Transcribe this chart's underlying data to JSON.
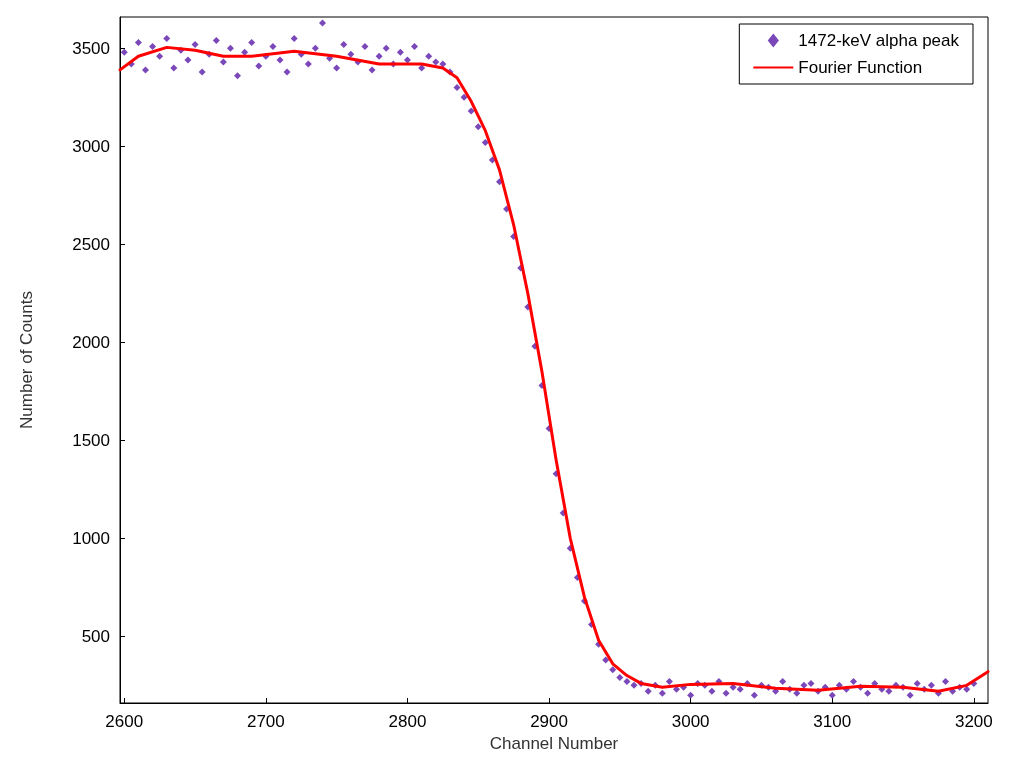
{
  "chart_data": {
    "type": "scatter",
    "xlabel": "Channel Number",
    "ylabel": "Number of Counts",
    "xlim": [
      2597,
      3210
    ],
    "ylim": [
      160,
      3660
    ],
    "xticks": [
      2600,
      2700,
      2800,
      2900,
      3000,
      3100,
      3200
    ],
    "yticks": [
      500,
      1000,
      1500,
      2000,
      2500,
      3000,
      3500
    ],
    "grid": false,
    "legend": "top right",
    "series": [
      {
        "name": "1472-keV alpha peak",
        "marker": "diamond",
        "color": "#5a1aa8",
        "x": [
          2600,
          2605,
          2610,
          2615,
          2620,
          2625,
          2630,
          2635,
          2640,
          2645,
          2650,
          2655,
          2660,
          2665,
          2670,
          2675,
          2680,
          2685,
          2690,
          2695,
          2700,
          2705,
          2710,
          2715,
          2720,
          2725,
          2730,
          2735,
          2740,
          2745,
          2750,
          2755,
          2760,
          2765,
          2770,
          2775,
          2780,
          2785,
          2790,
          2795,
          2800,
          2805,
          2810,
          2815,
          2820,
          2825,
          2830,
          2835,
          2840,
          2845,
          2850,
          2855,
          2860,
          2865,
          2870,
          2875,
          2880,
          2885,
          2890,
          2895,
          2900,
          2905,
          2910,
          2915,
          2920,
          2925,
          2930,
          2935,
          2940,
          2945,
          2950,
          2955,
          2960,
          2965,
          2970,
          2975,
          2980,
          2985,
          2990,
          2995,
          3000,
          3005,
          3010,
          3015,
          3020,
          3025,
          3030,
          3035,
          3040,
          3045,
          3050,
          3055,
          3060,
          3065,
          3070,
          3075,
          3080,
          3085,
          3090,
          3095,
          3100,
          3105,
          3110,
          3115,
          3120,
          3125,
          3130,
          3135,
          3140,
          3145,
          3150,
          3155,
          3160,
          3165,
          3170,
          3175,
          3180,
          3185,
          3190,
          3195,
          3200
        ],
        "values": [
          3480,
          3420,
          3530,
          3390,
          3510,
          3460,
          3550,
          3400,
          3490,
          3440,
          3520,
          3380,
          3470,
          3540,
          3430,
          3500,
          3360,
          3480,
          3530,
          3410,
          3460,
          3510,
          3440,
          3380,
          3550,
          3470,
          3420,
          3500,
          3630,
          3450,
          3400,
          3520,
          3470,
          3430,
          3510,
          3390,
          3460,
          3500,
          3420,
          3480,
          3440,
          3510,
          3400,
          3460,
          3430,
          3420,
          3380,
          3300,
          3250,
          3180,
          3100,
          3020,
          2930,
          2820,
          2680,
          2540,
          2380,
          2180,
          1980,
          1780,
          1560,
          1330,
          1130,
          950,
          800,
          680,
          560,
          460,
          380,
          330,
          290,
          270,
          250,
          260,
          220,
          250,
          210,
          270,
          230,
          240,
          200,
          260,
          250,
          220,
          270,
          210,
          240,
          230,
          260,
          200,
          250,
          240,
          220,
          270,
          230,
          210,
          250,
          260,
          220,
          240,
          200,
          250,
          230,
          270,
          240,
          210,
          260,
          230,
          220,
          250,
          240,
          200,
          260,
          230,
          250,
          210,
          270,
          220,
          240,
          230,
          260
        ]
      },
      {
        "name": "Fourier Function",
        "type": "line",
        "marker": "none",
        "line_style": "solid",
        "color": "#ff0000",
        "x": [
          2597,
          2610,
          2630,
          2650,
          2670,
          2690,
          2720,
          2750,
          2780,
          2810,
          2825,
          2835,
          2845,
          2855,
          2865,
          2875,
          2885,
          2895,
          2905,
          2915,
          2925,
          2935,
          2945,
          2955,
          2965,
          2980,
          3000,
          3030,
          3060,
          3090,
          3120,
          3150,
          3175,
          3195,
          3210
        ],
        "values": [
          3390,
          3460,
          3505,
          3490,
          3460,
          3460,
          3485,
          3460,
          3420,
          3420,
          3400,
          3350,
          3230,
          3080,
          2880,
          2600,
          2250,
          1850,
          1400,
          1000,
          700,
          480,
          360,
          300,
          260,
          240,
          255,
          260,
          235,
          225,
          245,
          240,
          220,
          250,
          320
        ]
      }
    ]
  }
}
